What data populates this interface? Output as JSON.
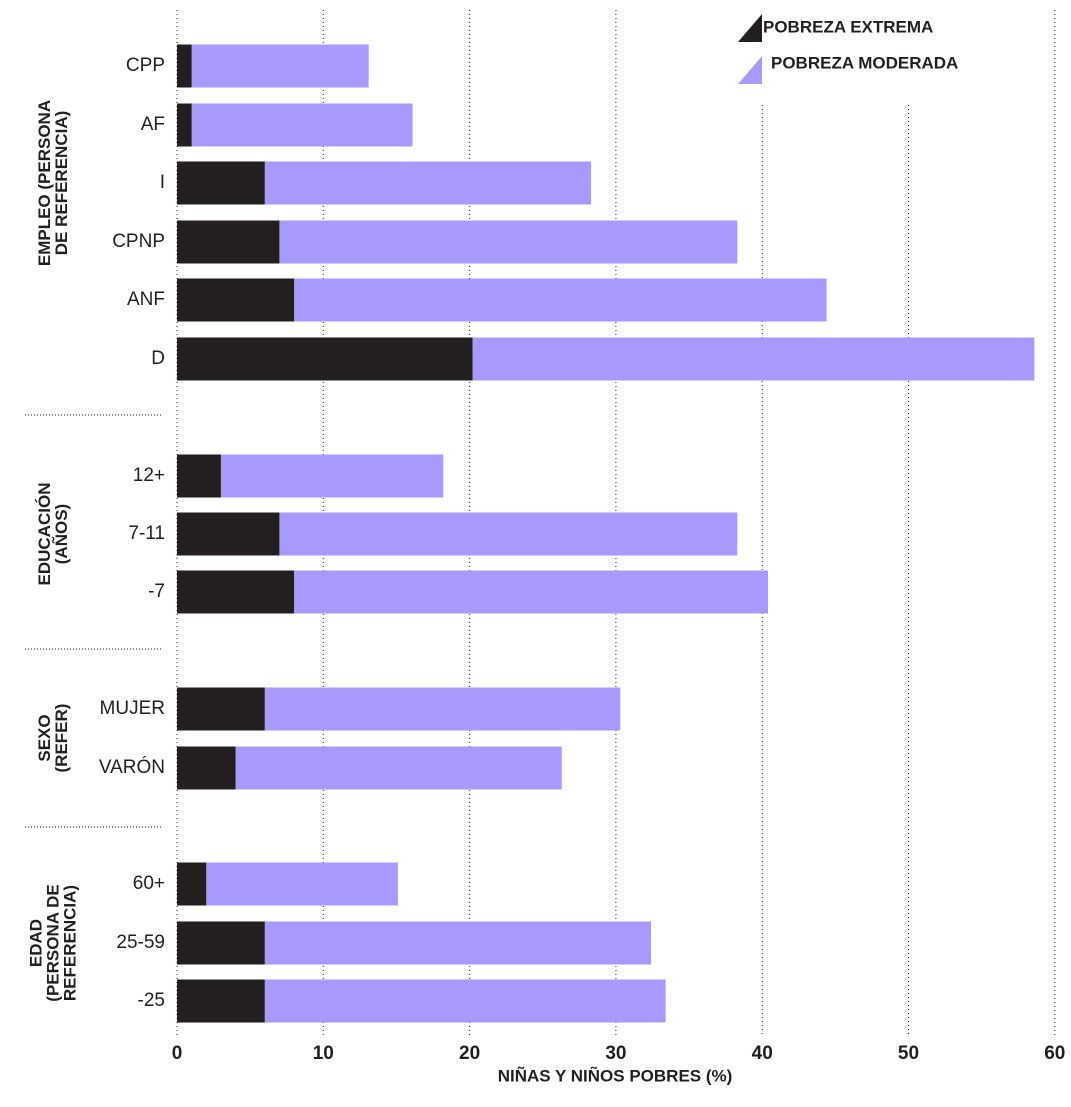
{
  "chart_data": {
    "type": "bar",
    "orientation": "horizontal",
    "stacked": true,
    "xlabel": "NIÑAS Y NIÑOS POBRES (%)",
    "xlim": [
      0,
      60
    ],
    "xticks": [
      0,
      10,
      20,
      30,
      40,
      50,
      60
    ],
    "grid": true,
    "legend_position": "top-right",
    "colors": {
      "extreme": "#231f20",
      "moderate": "#a89afc"
    },
    "series": [
      {
        "name": "POBREZA EXTREMA",
        "color": "#231f20"
      },
      {
        "name": "POBREZA MODERADA",
        "color": "#a89afc"
      }
    ],
    "groups": [
      {
        "label_lines": [
          "EMPLEO (PERSONA",
          "DE REFERENCIA)"
        ],
        "categories": [
          {
            "label": "CPP",
            "extreme": 1,
            "total": 13.1
          },
          {
            "label": "AF",
            "extreme": 1,
            "total": 16.1
          },
          {
            "label": "I",
            "extreme": 6,
            "total": 28.3
          },
          {
            "label": "CPNP",
            "extreme": 7,
            "total": 38.3
          },
          {
            "label": "ANF",
            "extreme": 8,
            "total": 44.4
          },
          {
            "label": "D",
            "extreme": 20.2,
            "total": 58.6
          }
        ]
      },
      {
        "label_lines": [
          "EDUCACIÓN",
          "(AÑOS)"
        ],
        "categories": [
          {
            "label": "12+",
            "extreme": 3,
            "total": 18.2
          },
          {
            "label": "7-11",
            "extreme": 7,
            "total": 38.3
          },
          {
            "label": "-7",
            "extreme": 8,
            "total": 40.4
          }
        ]
      },
      {
        "label_lines": [
          "SEXO",
          "(REFER)"
        ],
        "categories": [
          {
            "label": "MUJER",
            "extreme": 6,
            "total": 30.3
          },
          {
            "label": "VARÓN",
            "extreme": 4,
            "total": 26.3
          }
        ]
      },
      {
        "label_lines": [
          "EDAD",
          "(PERSONA DE",
          "REFERENCIA)"
        ],
        "categories": [
          {
            "label": "60+",
            "extreme": 2,
            "total": 15.1
          },
          {
            "label": "25-59",
            "extreme": 6,
            "total": 32.4
          },
          {
            "label": "-25",
            "extreme": 6,
            "total": 33.4
          }
        ]
      }
    ]
  }
}
